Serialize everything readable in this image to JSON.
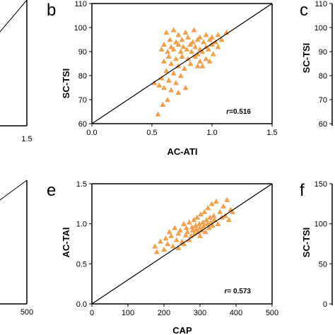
{
  "panels": [
    {
      "label": "b",
      "ylabel": "SC-TSI",
      "xlabel": "AC-ATI",
      "xticks": [
        "0.0",
        "0.5",
        "1.0",
        "1.5"
      ],
      "yticks": [
        "60",
        "70",
        "80",
        "90",
        "100",
        "110"
      ],
      "r_prefix": "r",
      "r_value": "=0.516"
    },
    {
      "label": "c",
      "ylabel": "SC-TSI",
      "yticks": [
        "60",
        "70",
        "80",
        "90",
        "100",
        "110"
      ]
    },
    {
      "label": "e",
      "ylabel": "AC-TAI",
      "xlabel": "CAP",
      "xticks": [
        "0",
        "100",
        "200",
        "300",
        "400",
        "500"
      ],
      "yticks": [
        "0.0",
        "0.5",
        "1.0",
        "1.5"
      ],
      "r_prefix": "r",
      "r_value": "= 0.573"
    },
    {
      "label": "f",
      "ylabel": "SC-TSI",
      "yticks": [
        "0",
        "50",
        "100",
        "150"
      ]
    },
    {
      "xticks": [
        "1.5"
      ]
    },
    {
      "xticks": [
        "500"
      ]
    }
  ],
  "colors": {
    "marker": "#f0a04b",
    "axis": "#000000"
  },
  "chart_data": [
    {
      "type": "scatter",
      "panel": "b",
      "xlabel": "AC-ATI",
      "ylabel": "SC-TSI",
      "xlim": [
        0,
        1.5
      ],
      "ylim": [
        60,
        110
      ],
      "annotation": "r=0.516",
      "reference_line": "identity",
      "marker": "triangle",
      "series": [
        {
          "points": [
            [
              0.62,
              98
            ],
            [
              0.68,
              99
            ],
            [
              0.72,
              97
            ],
            [
              0.78,
              98
            ],
            [
              0.85,
              99
            ],
            [
              0.9,
              96
            ],
            [
              0.95,
              97
            ],
            [
              1.0,
              96
            ],
            [
              1.05,
              97
            ],
            [
              1.12,
              98
            ],
            [
              0.65,
              95
            ],
            [
              0.7,
              94
            ],
            [
              0.75,
              95
            ],
            [
              0.8,
              96
            ],
            [
              0.84,
              94
            ],
            [
              0.88,
              95
            ],
            [
              0.93,
              94
            ],
            [
              0.98,
              95
            ],
            [
              1.03,
              94
            ],
            [
              1.08,
              95
            ],
            [
              0.6,
              93
            ],
            [
              0.66,
              92
            ],
            [
              0.72,
              93
            ],
            [
              0.76,
              92
            ],
            [
              0.82,
              93
            ],
            [
              0.86,
              92
            ],
            [
              0.9,
              91
            ],
            [
              0.95,
              92
            ],
            [
              1.0,
              93
            ],
            [
              1.05,
              92
            ],
            [
              0.58,
              91
            ],
            [
              0.63,
              90
            ],
            [
              0.68,
              91
            ],
            [
              0.74,
              90
            ],
            [
              0.79,
              91
            ],
            [
              0.83,
              90
            ],
            [
              0.88,
              89
            ],
            [
              0.92,
              90
            ],
            [
              0.97,
              91
            ],
            [
              1.01,
              89
            ],
            [
              0.64,
              88
            ],
            [
              0.7,
              87
            ],
            [
              0.75,
              88
            ],
            [
              0.8,
              87
            ],
            [
              0.86,
              88
            ],
            [
              0.9,
              86
            ],
            [
              0.95,
              87
            ],
            [
              0.6,
              86
            ],
            [
              0.66,
              85
            ],
            [
              0.72,
              84
            ],
            [
              0.77,
              83
            ],
            [
              0.82,
              85
            ],
            [
              0.88,
              84
            ],
            [
              0.62,
              82
            ],
            [
              0.68,
              81
            ],
            [
              0.74,
              80
            ],
            [
              0.58,
              79
            ],
            [
              0.64,
              78
            ],
            [
              0.7,
              77
            ],
            [
              0.52,
              77
            ],
            [
              0.56,
              76
            ],
            [
              0.6,
              75
            ],
            [
              0.66,
              74
            ],
            [
              0.72,
              73
            ],
            [
              0.78,
              75
            ],
            [
              0.63,
              70
            ],
            [
              0.59,
              68
            ],
            [
              0.55,
              64
            ],
            [
              0.92,
              84
            ],
            [
              0.98,
              86
            ]
          ]
        }
      ]
    },
    {
      "type": "scatter",
      "panel": "e",
      "xlabel": "CAP",
      "ylabel": "AC-TAI",
      "xlim": [
        0,
        500
      ],
      "ylim": [
        0,
        1.5
      ],
      "annotation": "r= 0.573",
      "reference_line": "identity",
      "marker": "triangle",
      "series": [
        {
          "points": [
            [
              175,
              0.72
            ],
            [
              180,
              0.65
            ],
            [
              190,
              0.78
            ],
            [
              200,
              0.68
            ],
            [
              205,
              0.82
            ],
            [
              210,
              0.75
            ],
            [
              215,
              0.9
            ],
            [
              220,
              0.85
            ],
            [
              225,
              0.72
            ],
            [
              230,
              0.95
            ],
            [
              235,
              0.8
            ],
            [
              240,
              0.88
            ],
            [
              245,
              0.92
            ],
            [
              250,
              0.78
            ],
            [
              255,
              1.0
            ],
            [
              260,
              0.86
            ],
            [
              262,
              0.95
            ],
            [
              265,
              0.9
            ],
            [
              270,
              1.02
            ],
            [
              275,
              0.85
            ],
            [
              278,
              0.96
            ],
            [
              280,
              0.92
            ],
            [
              283,
              1.05
            ],
            [
              285,
              0.88
            ],
            [
              288,
              0.98
            ],
            [
              290,
              0.93
            ],
            [
              292,
              1.08
            ],
            [
              295,
              0.9
            ],
            [
              298,
              1.0
            ],
            [
              300,
              0.95
            ],
            [
              302,
              1.12
            ],
            [
              305,
              0.92
            ],
            [
              308,
              1.02
            ],
            [
              310,
              0.97
            ],
            [
              312,
              1.15
            ],
            [
              315,
              0.9
            ],
            [
              318,
              1.05
            ],
            [
              320,
              1.0
            ],
            [
              322,
              1.2
            ],
            [
              325,
              0.95
            ],
            [
              328,
              1.08
            ],
            [
              330,
              1.02
            ],
            [
              333,
              1.25
            ],
            [
              335,
              0.98
            ],
            [
              338,
              1.1
            ],
            [
              340,
              1.05
            ],
            [
              345,
              1.28
            ],
            [
              350,
              1.0
            ],
            [
              355,
              1.15
            ],
            [
              360,
              1.08
            ],
            [
              365,
              1.22
            ],
            [
              370,
              1.1
            ],
            [
              375,
              1.3
            ],
            [
              380,
              1.05
            ],
            [
              385,
              1.18
            ],
            [
              390,
              1.15
            ],
            [
              270,
              0.8
            ],
            [
              255,
              0.75
            ],
            [
              240,
              0.7
            ],
            [
              300,
              0.85
            ]
          ]
        }
      ]
    }
  ]
}
